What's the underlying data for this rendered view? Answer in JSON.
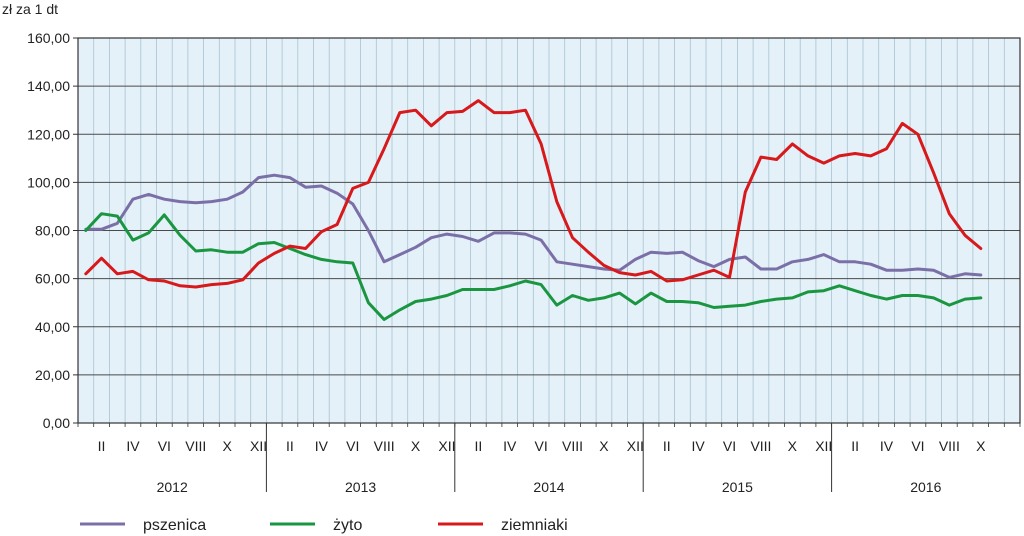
{
  "chart_data": {
    "type": "line",
    "title": "",
    "ylabel": "zł za 1 dt",
    "xlabel": "",
    "ylim": [
      0,
      160
    ],
    "yticks": [
      "0,00",
      "20,00",
      "40,00",
      "60,00",
      "80,00",
      "100,00",
      "120,00",
      "140,00",
      "160,00"
    ],
    "grid": true,
    "legend_position": "bottom",
    "years": [
      "2012",
      "2013",
      "2014",
      "2015",
      "2016"
    ],
    "month_tick_labels": [
      "II",
      "IV",
      "VI",
      "VIII",
      "X",
      "XII"
    ],
    "last_year_month_tick_labels": [
      "II",
      "IV",
      "VI",
      "VIII",
      "X"
    ],
    "month_count": 58,
    "x_note": "Monthly observations from January 2012 to October 2016",
    "series": [
      {
        "name": "pszenica",
        "color": "#7b6fa8",
        "values": [
          80.5,
          80.5,
          83,
          93,
          95,
          93,
          92,
          91.5,
          92,
          93,
          96,
          102,
          103,
          102,
          98,
          98.5,
          95.5,
          91,
          80,
          67,
          70,
          73,
          77,
          78.5,
          77.5,
          75.5,
          79,
          79,
          78.5,
          76,
          67,
          66,
          65,
          64,
          63.5,
          68,
          71,
          70.5,
          71,
          67.5,
          65,
          68,
          69,
          64,
          64,
          67,
          68,
          70,
          67,
          67,
          66,
          63.5,
          63.5,
          64,
          63.5,
          60.5,
          62,
          61.5
        ]
      },
      {
        "name": "żyto",
        "color": "#1a9641",
        "values": [
          80,
          87,
          86,
          76,
          79,
          86.5,
          78,
          71.5,
          72,
          71,
          71,
          74.5,
          75,
          72.5,
          70,
          68,
          67,
          66.5,
          50,
          43,
          47,
          50.5,
          51.5,
          53,
          55.5,
          55.5,
          55.5,
          57,
          59,
          57.5,
          49,
          53,
          51,
          52,
          54,
          49.5,
          54,
          50.5,
          50.5,
          50,
          48,
          48.5,
          49,
          50.5,
          51.5,
          52,
          54.5,
          55,
          57,
          55,
          53,
          51.5,
          53,
          53,
          52,
          49,
          51.5,
          52
        ]
      },
      {
        "name": "ziemniaki",
        "color": "#d7191c",
        "values": [
          62,
          68.5,
          62,
          63,
          59.5,
          59,
          57,
          56.5,
          57.5,
          58,
          59.5,
          66.5,
          70.5,
          73.5,
          72.5,
          79.5,
          82.5,
          97.5,
          100,
          114,
          129,
          130,
          123.5,
          129,
          129.5,
          134,
          129,
          129,
          130,
          116,
          92,
          77,
          71,
          65.5,
          62.5,
          61.5,
          63,
          59,
          59.5,
          61.5,
          63.5,
          60.5,
          96,
          110.5,
          109.5,
          116,
          111,
          108,
          111,
          112,
          111,
          114,
          124.5,
          120,
          104,
          87,
          78,
          72.5
        ]
      }
    ]
  }
}
